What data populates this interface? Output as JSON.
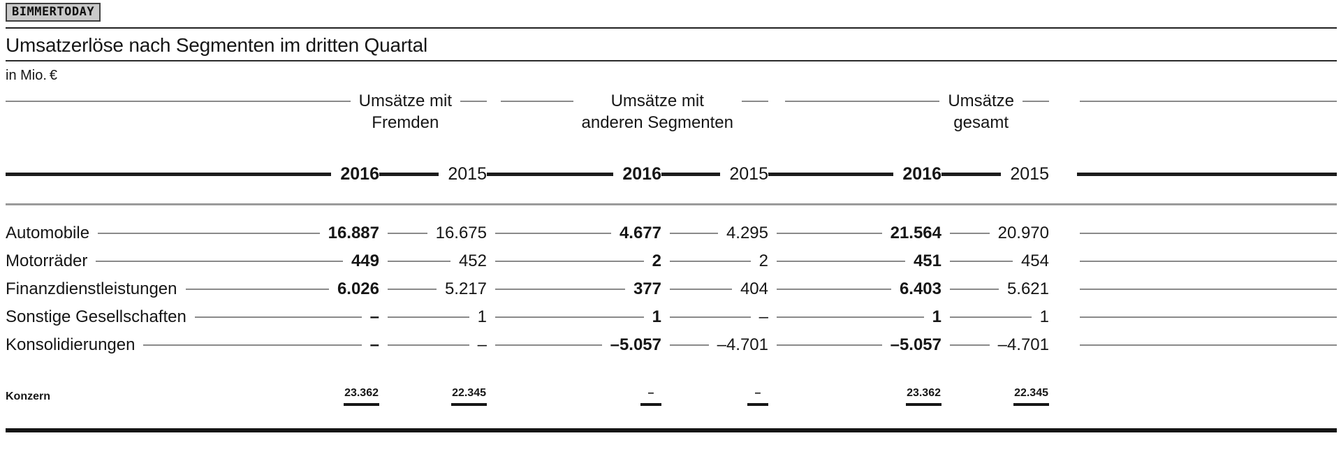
{
  "watermark": "BIMMERTODAY",
  "header": {
    "title": "Umsatzerlöse nach Segmenten im dritten Quartal",
    "unit": "in Mio. €"
  },
  "table": {
    "column_groups": [
      {
        "line1": "Umsätze mit",
        "line2": "Fremden"
      },
      {
        "line1": "Umsätze mit",
        "line2": "anderen Segmenten"
      },
      {
        "line1": "Umsätze",
        "line2": "gesamt"
      }
    ],
    "years": [
      "2016",
      "2015",
      "2016",
      "2015",
      "2016",
      "2015"
    ],
    "rows": [
      {
        "label": "Automobile",
        "values": [
          "16.887",
          "16.675",
          "4.677",
          "4.295",
          "21.564",
          "20.970"
        ]
      },
      {
        "label": "Motorräder",
        "values": [
          "449",
          "452",
          "2",
          "2",
          "451",
          "454"
        ]
      },
      {
        "label": "Finanzdienstleistungen",
        "values": [
          "6.026",
          "5.217",
          "377",
          "404",
          "6.403",
          "5.621"
        ]
      },
      {
        "label": "Sonstige Gesellschaften",
        "values": [
          "–",
          "1",
          "1",
          "–",
          "1",
          "1"
        ]
      },
      {
        "label": "Konsolidierungen",
        "values": [
          "–",
          "–",
          "–5.057",
          "–4.701",
          "–5.057",
          "–4.701"
        ]
      }
    ],
    "total_row": {
      "label": "Konzern",
      "values": [
        "23.362",
        "22.345",
        "–",
        "–",
        "23.362",
        "22.345"
      ]
    }
  },
  "colors": {
    "text": "#161616",
    "leader_line": "#8a8a8a",
    "heavy_rule": "#1c1c1c",
    "light_separator": "#9b9b9b",
    "badge_background": "#c9c9c9",
    "badge_border": "#3f3f3f"
  }
}
